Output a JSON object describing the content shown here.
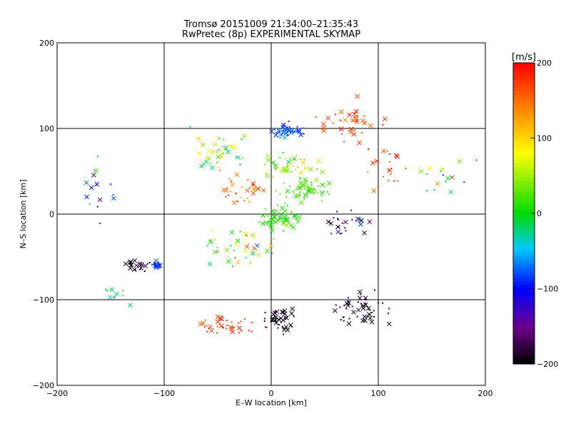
{
  "chart_data": {
    "type": "scatter",
    "title": "Tromsø 20151009 21:34:00–21:35:43",
    "subtitle": "RwPretec (8p) EXPERIMENTAL SKYMAP",
    "xlabel": "E–W location [km]",
    "ylabel": "N–S location [km]",
    "xlim": [
      -200,
      200
    ],
    "ylim": [
      -200,
      200
    ],
    "x_ticks": [
      -200,
      -100,
      0,
      100,
      200
    ],
    "y_ticks": [
      -200,
      -100,
      0,
      100,
      200
    ],
    "grid": true,
    "colorbar": {
      "label": "[m/s]",
      "range": [
        -200,
        200
      ],
      "ticks": [
        200,
        100,
        0,
        -100,
        -200
      ]
    },
    "marker_types": [
      "x",
      "dot"
    ],
    "clusters": [
      {
        "id": "north-blue",
        "cx": 15,
        "cy": 98,
        "sx": 12,
        "sy": 7,
        "n": 45,
        "v": -85,
        "vs": 25
      },
      {
        "id": "north-red",
        "cx": 75,
        "cy": 105,
        "sx": 25,
        "sy": 20,
        "n": 40,
        "v": 170,
        "vs": 25
      },
      {
        "id": "east-red",
        "cx": 110,
        "cy": 55,
        "sx": 20,
        "sy": 25,
        "n": 20,
        "v": 170,
        "vs": 30
      },
      {
        "id": "center-green",
        "cx": 30,
        "cy": 25,
        "sx": 20,
        "sy": 12,
        "n": 55,
        "v": 20,
        "vs": 15
      },
      {
        "id": "center-green-2",
        "cx": 5,
        "cy": -5,
        "sx": 15,
        "sy": 10,
        "n": 55,
        "v": 15,
        "vs": 20
      },
      {
        "id": "upper-center-mixed",
        "cx": 20,
        "cy": 55,
        "sx": 25,
        "sy": 15,
        "n": 50,
        "v": 40,
        "vs": 40
      },
      {
        "id": "upper-left-mixed",
        "cx": -50,
        "cy": 70,
        "sx": 25,
        "sy": 20,
        "n": 45,
        "v": 60,
        "vs": 80
      },
      {
        "id": "left-red",
        "cx": -30,
        "cy": 30,
        "sx": 20,
        "sy": 15,
        "n": 30,
        "v": 150,
        "vs": 50
      },
      {
        "id": "mid-mixed",
        "cx": -25,
        "cy": -35,
        "sx": 30,
        "sy": 20,
        "n": 40,
        "v": 60,
        "vs": 100
      },
      {
        "id": "left-blue",
        "cx": -108,
        "cy": -60,
        "sx": 6,
        "sy": 4,
        "n": 30,
        "v": -90,
        "vs": 20
      },
      {
        "id": "left-black",
        "cx": -125,
        "cy": -60,
        "sx": 10,
        "sy": 8,
        "n": 22,
        "v": -190,
        "vs": 10
      },
      {
        "id": "south-red",
        "cx": -40,
        "cy": -130,
        "sx": 25,
        "sy": 10,
        "n": 40,
        "v": 175,
        "vs": 20
      },
      {
        "id": "south-black",
        "cx": 10,
        "cy": -125,
        "sx": 15,
        "sy": 12,
        "n": 45,
        "v": -190,
        "vs": 10
      },
      {
        "id": "southeast-black",
        "cx": 85,
        "cy": -110,
        "sx": 20,
        "sy": 15,
        "n": 55,
        "v": -190,
        "vs": 10
      },
      {
        "id": "east-mixed",
        "cx": 70,
        "cy": -10,
        "sx": 20,
        "sy": 15,
        "n": 25,
        "v": -150,
        "vs": 80
      },
      {
        "id": "right-mixed",
        "cx": 165,
        "cy": 40,
        "sx": 20,
        "sy": 25,
        "n": 18,
        "v": 20,
        "vs": 140
      },
      {
        "id": "far-left-mixed",
        "cx": -160,
        "cy": 20,
        "sx": 15,
        "sy": 40,
        "n": 15,
        "v": -60,
        "vs": 100
      },
      {
        "id": "lower-left-green",
        "cx": -145,
        "cy": -95,
        "sx": 15,
        "sy": 8,
        "n": 10,
        "v": -10,
        "vs": 30
      }
    ]
  }
}
